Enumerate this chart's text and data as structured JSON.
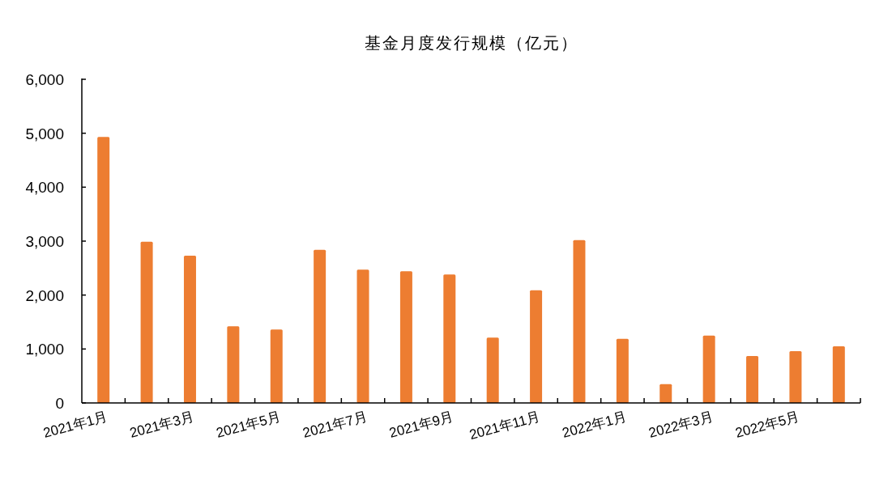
{
  "chart_data": {
    "type": "bar",
    "title": "基金月度发行规模（亿元）",
    "categories": [
      "2021年1月",
      null,
      "2021年3月",
      null,
      "2021年5月",
      null,
      "2021年7月",
      null,
      "2021年9月",
      null,
      "2021年11月",
      null,
      "2022年1月",
      null,
      "2022年3月",
      null,
      "2022年5月",
      null
    ],
    "values": [
      4930,
      2990,
      2730,
      1420,
      1360,
      2840,
      2470,
      2440,
      2380,
      1210,
      2090,
      3020,
      1190,
      350,
      1250,
      870,
      960,
      1050
    ],
    "color": "#ed7d31",
    "ylim": [
      0,
      6000
    ],
    "yticks": [
      {
        "value": 0,
        "label": "0"
      },
      {
        "value": 1000,
        "label": "1,000"
      },
      {
        "value": 2000,
        "label": "2,000"
      },
      {
        "value": 3000,
        "label": "3,000"
      },
      {
        "value": 4000,
        "label": "4,000"
      },
      {
        "value": 5000,
        "label": "5,000"
      },
      {
        "value": 6000,
        "label": "6,000"
      }
    ],
    "grid": false
  }
}
